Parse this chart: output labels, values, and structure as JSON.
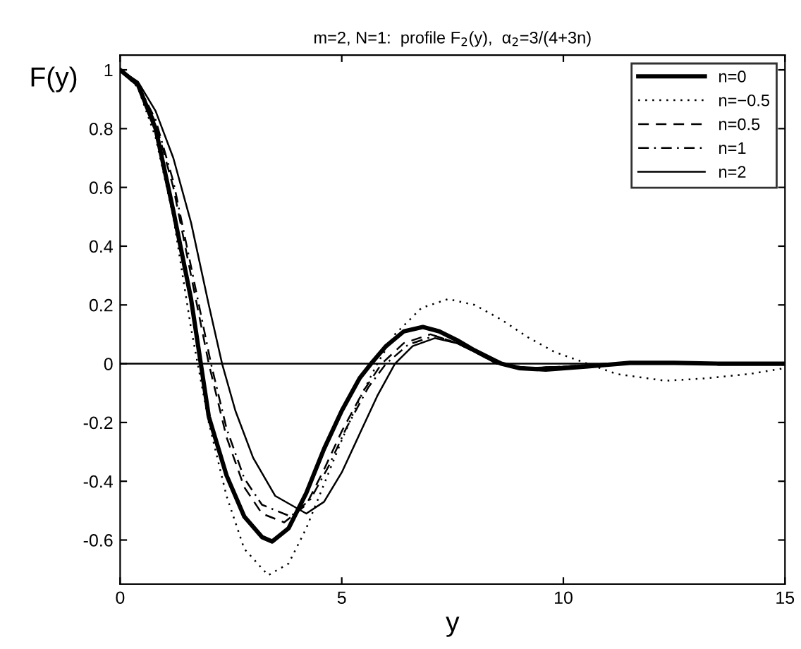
{
  "chart_data": {
    "type": "line",
    "title": "m=2, N=1:  profile F$_{2}$(y),  α$_{2}$=3/(4+3n)",
    "xlabel": "y",
    "ylabel": "F(y)",
    "xlim": [
      0,
      15
    ],
    "xticks": [
      0,
      5,
      10,
      15
    ],
    "ylim": [
      -0.75,
      1.05
    ],
    "yticks": [
      -0.6,
      -0.4,
      -0.2,
      0,
      0.2,
      0.4,
      0.6,
      0.8,
      1
    ],
    "grid": false,
    "legend": "top right",
    "marker": "none",
    "ref_lines": [
      {
        "axis": "y",
        "value": 0,
        "color": "#000000",
        "line_style": "solid"
      }
    ],
    "series": [
      {
        "name": "n=0",
        "color": "#000000",
        "line_style": "solid",
        "x": [
          0,
          0.4,
          0.8,
          1.2,
          1.6,
          2.0,
          2.4,
          2.8,
          3.2,
          3.43,
          3.8,
          4.2,
          4.6,
          5.0,
          5.4,
          5.66,
          6.0,
          6.4,
          6.83,
          7.2,
          7.6,
          8.0,
          8.6,
          9.0,
          9.6,
          10.5,
          11.5,
          12.5,
          13.5,
          15
        ],
        "values": [
          1,
          0.95,
          0.8,
          0.52,
          0.22,
          -0.18,
          -0.38,
          -0.52,
          -0.59,
          -0.605,
          -0.56,
          -0.44,
          -0.29,
          -0.16,
          -0.05,
          0,
          0.06,
          0.11,
          0.125,
          0.11,
          0.08,
          0.045,
          0,
          -0.015,
          -0.02,
          -0.01,
          0.003,
          0.003,
          0,
          0
        ]
      },
      {
        "name": "n=−0.5",
        "color": "#000000",
        "line_style": "dotted",
        "x": [
          0,
          0.4,
          0.8,
          1.2,
          1.6,
          2.0,
          2.4,
          2.8,
          3.34,
          3.8,
          4.2,
          4.6,
          5.0,
          5.4,
          5.8,
          6.2,
          6.8,
          7.4,
          8.0,
          8.6,
          9.2,
          9.8,
          10.55,
          11.2,
          12.3,
          13.2,
          14.2,
          15
        ],
        "values": [
          1,
          0.94,
          0.77,
          0.5,
          0.12,
          -0.2,
          -0.45,
          -0.63,
          -0.72,
          -0.68,
          -0.56,
          -0.41,
          -0.26,
          -0.12,
          0,
          0.1,
          0.19,
          0.22,
          0.2,
          0.15,
          0.09,
          0.04,
          0,
          -0.035,
          -0.058,
          -0.05,
          -0.035,
          -0.015
        ]
      },
      {
        "name": "n=0.5",
        "color": "#000000",
        "line_style": "dashed",
        "x": [
          0,
          0.4,
          0.8,
          1.2,
          1.6,
          2.0,
          2.4,
          2.8,
          3.2,
          3.7,
          4.2,
          4.6,
          5.0,
          5.5,
          5.9,
          6.4,
          7.0,
          7.6,
          8.0,
          8.5,
          9.2,
          10,
          11,
          15
        ],
        "values": [
          1,
          0.95,
          0.82,
          0.6,
          0.3,
          0,
          -0.25,
          -0.42,
          -0.51,
          -0.54,
          -0.48,
          -0.36,
          -0.23,
          -0.09,
          0,
          0.07,
          0.1,
          0.07,
          0.04,
          0,
          -0.015,
          -0.01,
          0,
          0
        ]
      },
      {
        "name": "n=1",
        "color": "#000000",
        "line_style": "dashdot",
        "x": [
          0,
          0.4,
          0.8,
          1.2,
          1.6,
          2.05,
          2.4,
          2.8,
          3.2,
          3.85,
          4.3,
          4.7,
          5.1,
          5.6,
          6.0,
          6.5,
          7.1,
          7.6,
          8.0,
          8.55,
          9.2,
          10,
          11,
          15
        ],
        "values": [
          1,
          0.95,
          0.83,
          0.62,
          0.33,
          0,
          -0.22,
          -0.39,
          -0.48,
          -0.52,
          -0.46,
          -0.35,
          -0.22,
          -0.08,
          0,
          0.065,
          0.095,
          0.07,
          0.04,
          0,
          -0.015,
          -0.01,
          0,
          0
        ]
      },
      {
        "name": "n=2",
        "color": "#000000",
        "line_style": "solid",
        "x": [
          0,
          0.4,
          0.8,
          1.2,
          1.6,
          2.0,
          2.3,
          2.6,
          3.0,
          3.5,
          4.2,
          4.6,
          5.0,
          5.4,
          5.8,
          6.2,
          6.6,
          7.1,
          7.6,
          8.0,
          8.5,
          9.2,
          10,
          11,
          15
        ],
        "values": [
          1,
          0.96,
          0.86,
          0.7,
          0.48,
          0.2,
          0,
          -0.16,
          -0.32,
          -0.45,
          -0.51,
          -0.47,
          -0.37,
          -0.24,
          -0.11,
          0,
          0.06,
          0.087,
          0.07,
          0.04,
          0,
          -0.015,
          -0.01,
          0,
          0
        ]
      }
    ]
  }
}
